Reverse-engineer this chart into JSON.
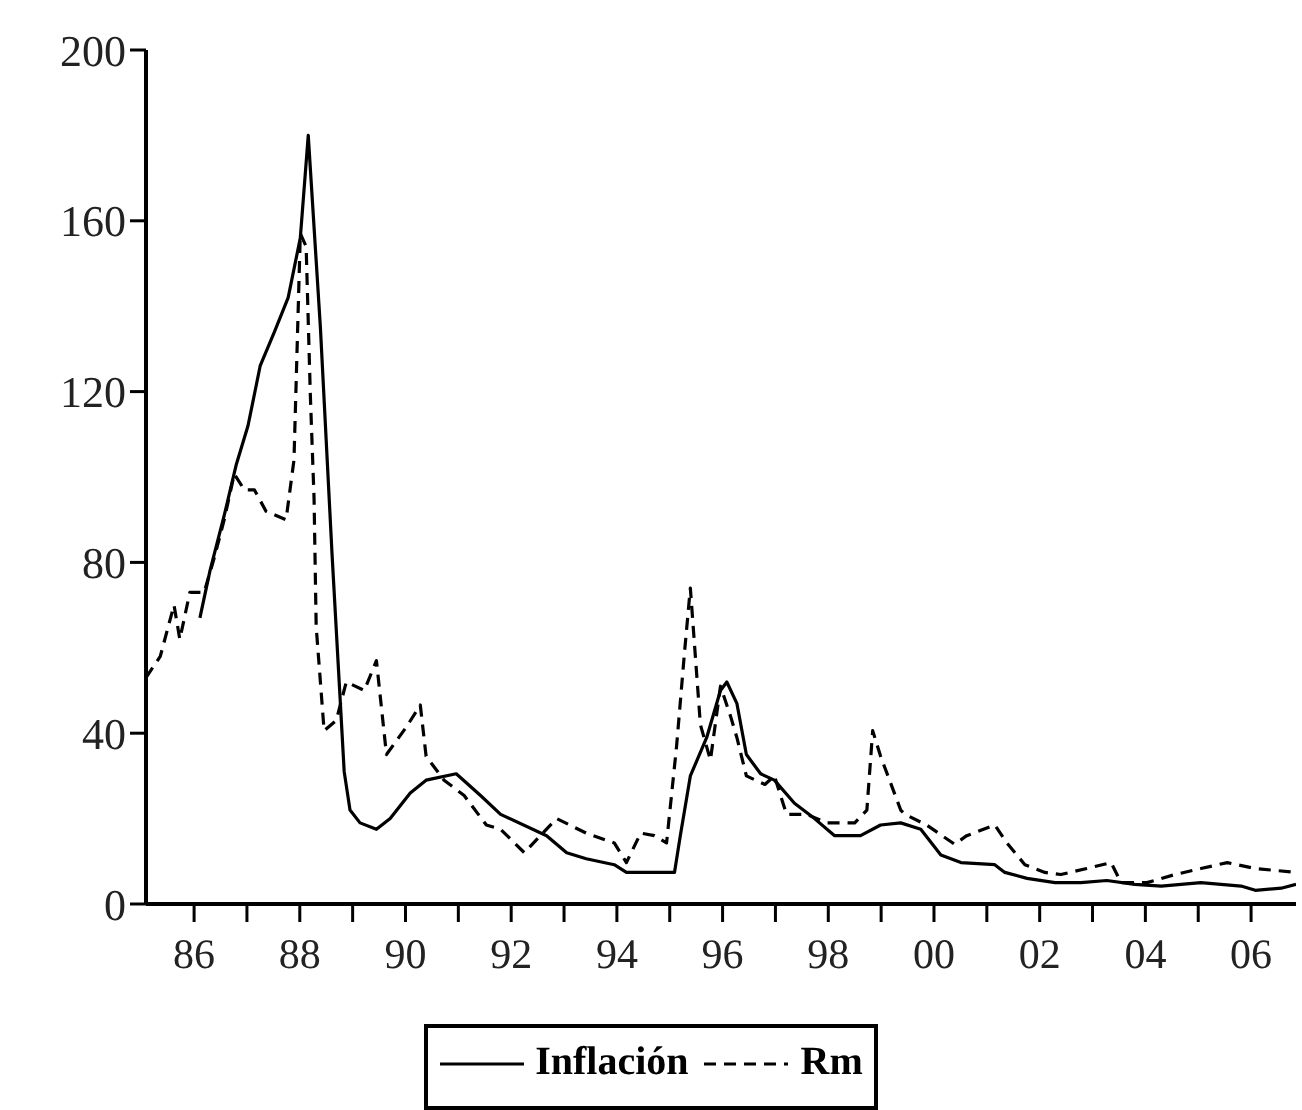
{
  "chart_data": {
    "type": "line",
    "xlim": [
      1985.09,
      2006.85
    ],
    "ylim": [
      0,
      200
    ],
    "yticks": [
      0,
      40,
      80,
      120,
      160,
      200
    ],
    "xticks": [
      {
        "value": 1986,
        "label": "86"
      },
      {
        "value": 1987,
        "label": null
      },
      {
        "value": 1988,
        "label": "88"
      },
      {
        "value": 1989,
        "label": null
      },
      {
        "value": 1990,
        "label": "90"
      },
      {
        "value": 1991,
        "label": null
      },
      {
        "value": 1992,
        "label": "92"
      },
      {
        "value": 1993,
        "label": null
      },
      {
        "value": 1994,
        "label": "94"
      },
      {
        "value": 1995,
        "label": null
      },
      {
        "value": 1996,
        "label": "96"
      },
      {
        "value": 1997,
        "label": null
      },
      {
        "value": 1998,
        "label": "98"
      },
      {
        "value": 1999,
        "label": null
      },
      {
        "value": 2000,
        "label": "00"
      },
      {
        "value": 2001,
        "label": null
      },
      {
        "value": 2002,
        "label": "02"
      },
      {
        "value": 2003,
        "label": null
      },
      {
        "value": 2004,
        "label": "04"
      },
      {
        "value": 2005,
        "label": null
      },
      {
        "value": 2006,
        "label": "06"
      }
    ],
    "grid": false,
    "legend": "bottom",
    "marker": "none",
    "series": [
      {
        "name": "Inflación",
        "color": "#000000",
        "line_style": "solid",
        "x": [
          1986.11,
          1986.3,
          1986.57,
          1986.8,
          1987.02,
          1987.25,
          1987.52,
          1987.78,
          1988.01,
          1988.16,
          1988.39,
          1988.61,
          1988.84,
          1988.95,
          1989.14,
          1989.45,
          1989.71,
          1990.09,
          1990.39,
          1990.96,
          1991.42,
          1991.8,
          1992.67,
          1993.05,
          1993.42,
          1993.95,
          1994.18,
          1995.09,
          1995.2,
          1995.39,
          1995.7,
          1995.96,
          1996.08,
          1996.27,
          1996.45,
          1996.72,
          1996.98,
          1997.36,
          1997.74,
          1998.12,
          1998.61,
          1998.99,
          1999.37,
          1999.75,
          2000.13,
          2000.51,
          2001.15,
          2001.34,
          2001.76,
          2002.29,
          2002.78,
          2003.27,
          2003.8,
          2004.3,
          2005.05,
          2005.81,
          2006.08,
          2006.57,
          2006.85
        ],
        "values": [
          67,
          78,
          91,
          103,
          112,
          126,
          134,
          142,
          156,
          180,
          135,
          82,
          31,
          22,
          19,
          17.5,
          20,
          26,
          29,
          30.5,
          25.4,
          21,
          16,
          12,
          10.6,
          9.2,
          7.4,
          7.4,
          16,
          30,
          39,
          50,
          52,
          47,
          35,
          30.5,
          29,
          23.6,
          20,
          16,
          16,
          18.5,
          19,
          17.5,
          11.5,
          9.7,
          9.2,
          7.4,
          6,
          5,
          5,
          5.5,
          4.6,
          4.2,
          5,
          4.2,
          3.2,
          3.7,
          4.6
        ]
      },
      {
        "name": "Rm",
        "color": "#000000",
        "line_style": "dashed",
        "x": [
          1985.09,
          1985.36,
          1985.62,
          1985.73,
          1985.92,
          1986.19,
          1986.38,
          1986.57,
          1986.76,
          1986.95,
          1987.14,
          1987.36,
          1987.74,
          1987.89,
          1988.01,
          1988.12,
          1988.2,
          1988.27,
          1988.31,
          1988.46,
          1988.69,
          1988.88,
          1989.22,
          1989.45,
          1989.64,
          1990.02,
          1990.28,
          1990.39,
          1990.73,
          1991.11,
          1991.53,
          1991.8,
          1992.25,
          1992.55,
          1992.86,
          1993.42,
          1993.95,
          1994.18,
          1994.45,
          1994.71,
          1994.94,
          1995.13,
          1995.28,
          1995.39,
          1995.58,
          1995.77,
          1995.96,
          1996.15,
          1996.27,
          1996.45,
          1996.8,
          1996.98,
          1997.21,
          1997.59,
          1997.97,
          1998.5,
          1998.73,
          1998.84,
          1998.99,
          1999.37,
          1999.45,
          1999.86,
          2000.39,
          2000.62,
          2001.15,
          2001.38,
          2001.72,
          2002.1,
          2002.4,
          2002.89,
          2003.35,
          2003.54,
          2004.03,
          2004.56,
          2005.05,
          2005.55,
          2006.08,
          2006.85
        ],
        "values": [
          53,
          58,
          70,
          62,
          73,
          73,
          81,
          90,
          100.7,
          97,
          97,
          92,
          90,
          104,
          157,
          154,
          119,
          95,
          65,
          40.6,
          43,
          52,
          50,
          57,
          35,
          41.5,
          46.6,
          34.6,
          29,
          25.4,
          18.5,
          17.5,
          12,
          16,
          20,
          16.6,
          14.3,
          9.7,
          16.6,
          16,
          14.3,
          37,
          59,
          74,
          42,
          33.7,
          51,
          44,
          39,
          30,
          28,
          30,
          21,
          21,
          19,
          19,
          22,
          40.6,
          34.6,
          22,
          21,
          18.5,
          14,
          16,
          18.5,
          14.3,
          9.2,
          7.4,
          6.9,
          8.3,
          9.7,
          5,
          5,
          6.9,
          8.3,
          9.7,
          8.3,
          7.4
        ]
      }
    ]
  }
}
